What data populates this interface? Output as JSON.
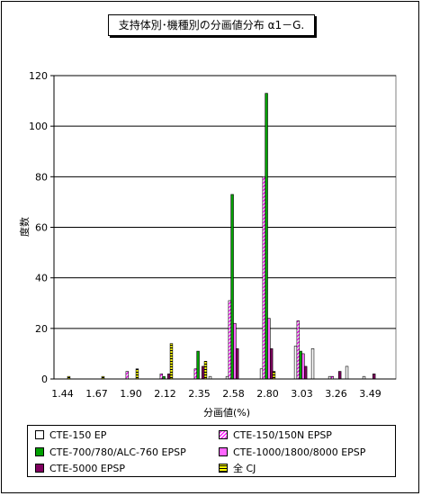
{
  "chart_data": {
    "type": "bar",
    "title": "支持体別･機種別の分画値分布 α1－G.",
    "xlabel": "分画値(%)",
    "ylabel": "度数",
    "ylim": [
      0,
      120
    ],
    "yticks": [
      0,
      20,
      40,
      60,
      80,
      100,
      120
    ],
    "grid": true,
    "legend_position": "bottom",
    "categories": [
      "1.44",
      "1.55",
      "1.67",
      "1.78",
      "1.90",
      "2.01",
      "2.12",
      "2.24",
      "2.35",
      "2.46",
      "2.58",
      "2.69",
      "2.80",
      "2.91",
      "3.03",
      "3.14",
      "3.26",
      "3.37",
      "3.49",
      "3.60"
    ],
    "tick_labels": [
      "1.44",
      "1.67",
      "1.90",
      "2.12",
      "2.35",
      "2.58",
      "2.80",
      "3.03",
      "3.26",
      "3.49"
    ],
    "series": [
      {
        "name": "CTE-150 EP",
        "color": "#ffffff",
        "pattern": "solid-outline",
        "values": [
          0,
          0,
          0,
          0,
          0,
          0,
          0,
          0,
          0,
          1,
          1,
          0,
          4,
          0,
          13,
          12,
          1,
          5,
          1,
          0
        ]
      },
      {
        "name": "CTE-150/150N EPSP",
        "color": "#ff00ff",
        "pattern": "diagonal",
        "values": [
          0,
          0,
          0,
          0,
          3,
          0,
          2,
          0,
          4,
          0,
          31,
          0,
          80,
          0,
          23,
          0,
          1,
          0,
          0,
          0
        ]
      },
      {
        "name": "CTE-700/780/ALC-760 EPSP",
        "color": "#00a000",
        "pattern": "solid",
        "values": [
          0,
          0,
          0,
          0,
          0,
          0,
          1,
          0,
          11,
          0,
          73,
          0,
          113,
          0,
          11,
          0,
          0,
          0,
          0,
          0
        ]
      },
      {
        "name": "CTE-1000/1800/8000 EPSP",
        "color": "#ff66ff",
        "pattern": "solid-light",
        "values": [
          0,
          0,
          0,
          0,
          0,
          0,
          0,
          0,
          0,
          0,
          22,
          0,
          24,
          0,
          10,
          0,
          0,
          0,
          0,
          0
        ]
      },
      {
        "name": "CTE-5000 EPSP",
        "color": "#800060",
        "pattern": "solid",
        "values": [
          0,
          0,
          0,
          0,
          0,
          0,
          2,
          0,
          5,
          0,
          12,
          0,
          12,
          0,
          5,
          0,
          3,
          0,
          2,
          0
        ]
      },
      {
        "name": "全 CJ",
        "color": "#ffff00",
        "pattern": "horizontal-stripes",
        "values": [
          1,
          0,
          1,
          0,
          4,
          0,
          14,
          0,
          7,
          0,
          0,
          0,
          3,
          0,
          0,
          0,
          0,
          0,
          0,
          0
        ]
      }
    ]
  }
}
